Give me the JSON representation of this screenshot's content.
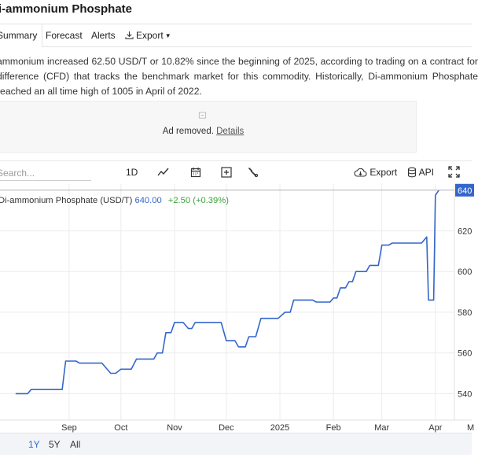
{
  "page": {
    "title": "i-ammonium Phosphate"
  },
  "tabs": [
    {
      "label": "Summary",
      "active": true
    },
    {
      "label": "Forecast"
    },
    {
      "label": "Alerts"
    },
    {
      "label": "Export"
    }
  ],
  "description": "ammonium increased 62.50 USD/T or 10.82% since the beginning of 2025, according to trading on a contract for difference (CFD) that tracks the benchmark market for this commodity. Historically, Di-ammonium Phosphate reached an all time high of 1005 in April of 2022.",
  "ad": {
    "text": "Ad removed.",
    "link": "Details"
  },
  "toolbar": {
    "search_placeholder": "Search...",
    "interval": "1D",
    "export_label": "Export",
    "api_label": "API",
    "icons": [
      "line-chart-icon",
      "calendar-icon",
      "plus-box-icon",
      "wrench-icon",
      "cloud-download-icon",
      "database-icon",
      "fullscreen-icon"
    ]
  },
  "legend": {
    "name": "Di-ammonium Phosphate (USD/T)",
    "value": "640.00",
    "change": "+2.50 (+0.39%)"
  },
  "range_buttons": [
    {
      "label": "1Y",
      "active": true
    },
    {
      "label": "5Y"
    },
    {
      "label": "All"
    }
  ],
  "colors": {
    "line": "#3366cc",
    "positive": "#3aa53a",
    "price_tag": "#3366cc"
  },
  "chart_data": {
    "type": "line",
    "series": [
      {
        "name": "Di-ammonium Phosphate (USD/T)",
        "points": [
          [
            "2024-08-01",
            540
          ],
          [
            "2024-08-08",
            540
          ],
          [
            "2024-08-10",
            542
          ],
          [
            "2024-08-28",
            542
          ],
          [
            "2024-08-30",
            556
          ],
          [
            "2024-09-05",
            556
          ],
          [
            "2024-09-07",
            555
          ],
          [
            "2024-09-20",
            555
          ],
          [
            "2024-09-25",
            550
          ],
          [
            "2024-09-28",
            550
          ],
          [
            "2024-10-01",
            552
          ],
          [
            "2024-10-07",
            552
          ],
          [
            "2024-10-10",
            557
          ],
          [
            "2024-10-20",
            557
          ],
          [
            "2024-10-22",
            560
          ],
          [
            "2024-10-25",
            560
          ],
          [
            "2024-10-27",
            570
          ],
          [
            "2024-10-30",
            570
          ],
          [
            "2024-11-01",
            575
          ],
          [
            "2024-11-06",
            575
          ],
          [
            "2024-11-09",
            572
          ],
          [
            "2024-11-11",
            572
          ],
          [
            "2024-11-13",
            575
          ],
          [
            "2024-11-28",
            575
          ],
          [
            "2024-12-01",
            566
          ],
          [
            "2024-12-06",
            566
          ],
          [
            "2024-12-08",
            563
          ],
          [
            "2024-12-12",
            563
          ],
          [
            "2024-12-14",
            568
          ],
          [
            "2024-12-18",
            568
          ],
          [
            "2024-12-21",
            577
          ],
          [
            "2024-12-31",
            577
          ],
          [
            "2025-01-04",
            580
          ],
          [
            "2025-01-07",
            580
          ],
          [
            "2025-01-09",
            586
          ],
          [
            "2025-01-20",
            586
          ],
          [
            "2025-01-22",
            585
          ],
          [
            "2025-01-30",
            585
          ],
          [
            "2025-02-01",
            587
          ],
          [
            "2025-02-03",
            587
          ],
          [
            "2025-02-05",
            592
          ],
          [
            "2025-02-08",
            592
          ],
          [
            "2025-02-10",
            595
          ],
          [
            "2025-02-12",
            595
          ],
          [
            "2025-02-14",
            600
          ],
          [
            "2025-02-20",
            600
          ],
          [
            "2025-02-22",
            603
          ],
          [
            "2025-02-27",
            603
          ],
          [
            "2025-03-01",
            613
          ],
          [
            "2025-03-05",
            613
          ],
          [
            "2025-03-07",
            614
          ],
          [
            "2025-03-24",
            614
          ],
          [
            "2025-03-27",
            617
          ],
          [
            "2025-03-28",
            586
          ],
          [
            "2025-03-31",
            586
          ],
          [
            "2025-04-01",
            637.5
          ],
          [
            "2025-04-03",
            640
          ]
        ]
      }
    ],
    "x_tick_labels": [
      "Sep",
      "Oct",
      "Nov",
      "Dec",
      "2025",
      "Feb",
      "Mar",
      "Apr"
    ],
    "y_tick_labels": [
      540,
      560,
      580,
      600,
      620
    ],
    "last_value_label": "640",
    "ylim": [
      527,
      643
    ],
    "grid": true,
    "legend_position": "top-left"
  }
}
